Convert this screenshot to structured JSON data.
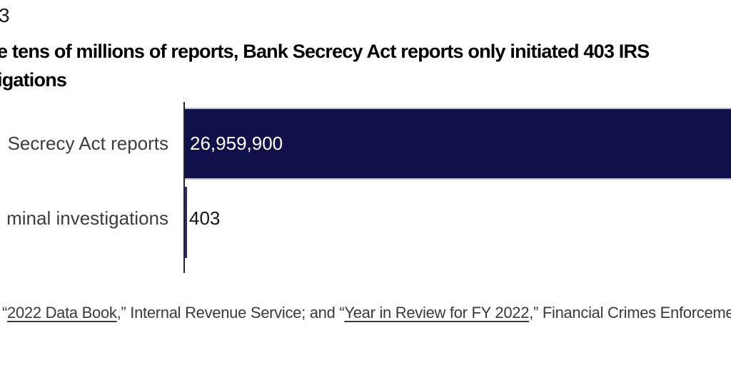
{
  "figure_number": "3",
  "title": {
    "line1": "e tens of millions of reports, Bank Secrecy Act reports only initiated 403 IRS",
    "line2": "igations"
  },
  "chart": {
    "rows": [
      {
        "label": "Secrecy Act reports",
        "value_label": "26,959,900"
      },
      {
        "label": "minal investigations",
        "value_label": "403"
      }
    ]
  },
  "source": {
    "quote_open": "“",
    "link1": "2022 Data Book",
    "mid": ",” Internal Revenue Service; and “",
    "link2": "Year in Review for FY 2022",
    "suffix": ",” Financial Crimes Enforcement"
  },
  "colors": {
    "bar": "#10104a",
    "bar_sliver": "#29296e",
    "axis": "#262626",
    "title_text": "#000000",
    "label_text": "#3d3d3d",
    "bar_value_text": "#ffffff",
    "source_text": "#3a3a3a",
    "bar_edge_highlight": "#c2c2d2",
    "background": "#ffffff"
  },
  "chart_data": {
    "type": "bar",
    "orientation": "horizontal",
    "title": "e tens of millions of reports, Bank Secrecy Act reports only initiated 403 IRS igations",
    "categories": [
      "Secrecy Act reports",
      "minal investigations"
    ],
    "values": [
      26959900,
      403
    ],
    "value_labels": [
      "26,959,900",
      "403"
    ],
    "xlabel": "",
    "ylabel": "",
    "xlim": [
      0,
      26959900
    ],
    "grid": false,
    "legend": false,
    "bar_color": "#10104a",
    "notes": "First bar runs off the right edge of the crop; second bar renders as a minimal-width sliver at the axis.",
    "source_caption": "“2022 Data Book,” Internal Revenue Service; and “Year in Review for FY 2022,” Financial Crimes Enforcement"
  }
}
